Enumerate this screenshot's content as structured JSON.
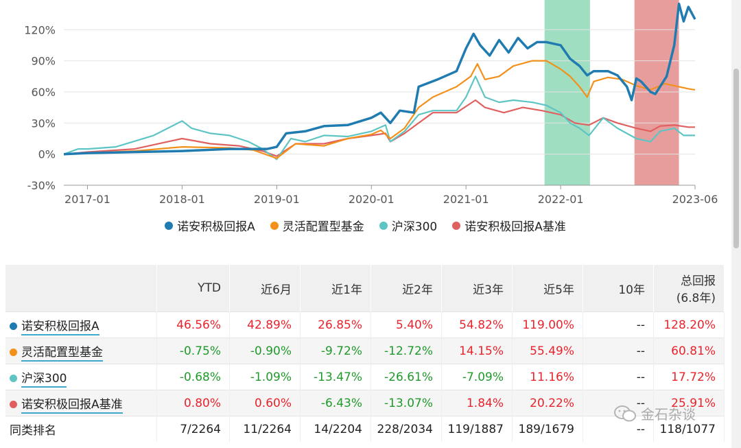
{
  "chart_data": {
    "type": "line",
    "y_ticks": [
      "120%",
      "90%",
      "60%",
      "30%",
      "0%",
      "-30%"
    ],
    "y_tick_values": [
      120,
      90,
      60,
      30,
      0,
      -30
    ],
    "ylim": [
      -30,
      142
    ],
    "x_ticks": [
      "2017-01",
      "2018-01",
      "2019-01",
      "2020-01",
      "2021-01",
      "2022-01",
      "2023-06"
    ],
    "x_tick_values": [
      2017.0,
      2018.0,
      2019.0,
      2020.0,
      2021.0,
      2022.0,
      2023.42
    ],
    "xlim": [
      2016.75,
      2023.42
    ],
    "grid": true,
    "legend_position": "bottom-center",
    "highlight_bands": [
      {
        "start": 2021.83,
        "end": 2022.31,
        "color": "#7fd3ac"
      },
      {
        "start": 2022.78,
        "end": 2023.25,
        "color": "#e07c7c"
      }
    ],
    "series": [
      {
        "name": "诺安积极回报A",
        "color": "#1f7bb0",
        "points": [
          [
            2016.75,
            0
          ],
          [
            2017.0,
            1
          ],
          [
            2017.5,
            2
          ],
          [
            2018.0,
            3
          ],
          [
            2018.5,
            5
          ],
          [
            2018.75,
            5
          ],
          [
            2018.9,
            5
          ],
          [
            2019.0,
            7
          ],
          [
            2019.1,
            20
          ],
          [
            2019.3,
            22
          ],
          [
            2019.5,
            27
          ],
          [
            2019.75,
            28
          ],
          [
            2020.0,
            35
          ],
          [
            2020.1,
            40
          ],
          [
            2020.2,
            30
          ],
          [
            2020.3,
            42
          ],
          [
            2020.45,
            40
          ],
          [
            2020.5,
            65
          ],
          [
            2020.7,
            72
          ],
          [
            2020.9,
            80
          ],
          [
            2021.0,
            102
          ],
          [
            2021.08,
            116
          ],
          [
            2021.15,
            105
          ],
          [
            2021.25,
            95
          ],
          [
            2021.35,
            110
          ],
          [
            2021.45,
            98
          ],
          [
            2021.55,
            112
          ],
          [
            2021.65,
            102
          ],
          [
            2021.75,
            108
          ],
          [
            2021.85,
            108
          ],
          [
            2022.0,
            105
          ],
          [
            2022.1,
            92
          ],
          [
            2022.2,
            85
          ],
          [
            2022.28,
            76
          ],
          [
            2022.35,
            80
          ],
          [
            2022.5,
            80
          ],
          [
            2022.6,
            76
          ],
          [
            2022.7,
            65
          ],
          [
            2022.75,
            52
          ],
          [
            2022.8,
            73
          ],
          [
            2022.85,
            70
          ],
          [
            2022.95,
            60
          ],
          [
            2023.0,
            58
          ],
          [
            2023.05,
            65
          ],
          [
            2023.12,
            75
          ],
          [
            2023.2,
            105
          ],
          [
            2023.25,
            145
          ],
          [
            2023.3,
            128
          ],
          [
            2023.35,
            142
          ],
          [
            2023.42,
            130
          ]
        ]
      },
      {
        "name": "灵活配置型基金",
        "color": "#f39019",
        "points": [
          [
            2016.75,
            0
          ],
          [
            2017.0,
            1
          ],
          [
            2017.5,
            3
          ],
          [
            2018.0,
            7
          ],
          [
            2018.5,
            6
          ],
          [
            2018.75,
            4
          ],
          [
            2019.0,
            -4
          ],
          [
            2019.2,
            10
          ],
          [
            2019.5,
            8
          ],
          [
            2019.75,
            15
          ],
          [
            2020.0,
            19
          ],
          [
            2020.1,
            23
          ],
          [
            2020.2,
            15
          ],
          [
            2020.35,
            25
          ],
          [
            2020.5,
            45
          ],
          [
            2020.65,
            55
          ],
          [
            2020.9,
            65
          ],
          [
            2021.05,
            75
          ],
          [
            2021.12,
            87
          ],
          [
            2021.2,
            72
          ],
          [
            2021.35,
            75
          ],
          [
            2021.5,
            85
          ],
          [
            2021.7,
            90
          ],
          [
            2021.85,
            90
          ],
          [
            2022.0,
            82
          ],
          [
            2022.1,
            75
          ],
          [
            2022.2,
            65
          ],
          [
            2022.28,
            55
          ],
          [
            2022.35,
            70
          ],
          [
            2022.5,
            74
          ],
          [
            2022.65,
            72
          ],
          [
            2022.8,
            66
          ],
          [
            2022.95,
            62
          ],
          [
            2023.1,
            68
          ],
          [
            2023.25,
            65
          ],
          [
            2023.35,
            63
          ],
          [
            2023.42,
            62
          ]
        ]
      },
      {
        "name": "沪深300",
        "color": "#5ec4c4",
        "points": [
          [
            2016.75,
            0
          ],
          [
            2016.9,
            5
          ],
          [
            2017.0,
            5
          ],
          [
            2017.3,
            7
          ],
          [
            2017.7,
            18
          ],
          [
            2018.0,
            32
          ],
          [
            2018.1,
            25
          ],
          [
            2018.3,
            20
          ],
          [
            2018.5,
            18
          ],
          [
            2018.7,
            12
          ],
          [
            2018.85,
            5
          ],
          [
            2019.0,
            -5
          ],
          [
            2019.15,
            15
          ],
          [
            2019.3,
            12
          ],
          [
            2019.5,
            18
          ],
          [
            2019.75,
            17
          ],
          [
            2020.0,
            22
          ],
          [
            2020.15,
            28
          ],
          [
            2020.2,
            12
          ],
          [
            2020.35,
            22
          ],
          [
            2020.5,
            38
          ],
          [
            2020.65,
            42
          ],
          [
            2020.9,
            42
          ],
          [
            2021.0,
            55
          ],
          [
            2021.1,
            75
          ],
          [
            2021.2,
            55
          ],
          [
            2021.35,
            50
          ],
          [
            2021.5,
            52
          ],
          [
            2021.7,
            50
          ],
          [
            2021.85,
            47
          ],
          [
            2022.0,
            40
          ],
          [
            2022.1,
            30
          ],
          [
            2022.2,
            25
          ],
          [
            2022.3,
            18
          ],
          [
            2022.45,
            35
          ],
          [
            2022.6,
            25
          ],
          [
            2022.8,
            15
          ],
          [
            2022.95,
            12
          ],
          [
            2023.05,
            22
          ],
          [
            2023.2,
            25
          ],
          [
            2023.3,
            18
          ],
          [
            2023.42,
            18
          ]
        ]
      },
      {
        "name": "诺安积极回报A基准",
        "color": "#e06060",
        "points": [
          [
            2016.75,
            0
          ],
          [
            2017.0,
            2
          ],
          [
            2017.5,
            5
          ],
          [
            2018.0,
            15
          ],
          [
            2018.3,
            10
          ],
          [
            2018.6,
            8
          ],
          [
            2018.85,
            3
          ],
          [
            2019.0,
            -2
          ],
          [
            2019.2,
            10
          ],
          [
            2019.5,
            10
          ],
          [
            2019.75,
            15
          ],
          [
            2020.0,
            18
          ],
          [
            2020.15,
            20
          ],
          [
            2020.2,
            12
          ],
          [
            2020.35,
            20
          ],
          [
            2020.5,
            30
          ],
          [
            2020.65,
            40
          ],
          [
            2020.9,
            40
          ],
          [
            2021.1,
            52
          ],
          [
            2021.2,
            45
          ],
          [
            2021.4,
            40
          ],
          [
            2021.6,
            45
          ],
          [
            2021.8,
            42
          ],
          [
            2022.0,
            38
          ],
          [
            2022.15,
            30
          ],
          [
            2022.3,
            28
          ],
          [
            2022.45,
            35
          ],
          [
            2022.6,
            30
          ],
          [
            2022.8,
            25
          ],
          [
            2022.95,
            22
          ],
          [
            2023.05,
            27
          ],
          [
            2023.2,
            28
          ],
          [
            2023.35,
            26
          ],
          [
            2023.42,
            26
          ]
        ]
      }
    ]
  },
  "table": {
    "headers": [
      "",
      "YTD",
      "近6月",
      "近1年",
      "近2年",
      "近3年",
      "近5年",
      "10年",
      "总回报",
      "(6.8年)"
    ],
    "rows": [
      {
        "name": "诺安积极回报A",
        "color": "#1f7bb0",
        "values": [
          "46.56%",
          "42.89%",
          "26.85%",
          "5.40%",
          "54.82%",
          "119.00%",
          "--",
          "128.20%"
        ],
        "signs": [
          "pos",
          "pos",
          "pos",
          "pos",
          "pos",
          "pos",
          "neu",
          "pos"
        ]
      },
      {
        "name": "灵活配置型基金",
        "color": "#f39019",
        "values": [
          "-0.75%",
          "-0.90%",
          "-9.72%",
          "-12.72%",
          "14.15%",
          "55.49%",
          "--",
          "60.81%"
        ],
        "signs": [
          "neg",
          "neg",
          "neg",
          "neg",
          "pos",
          "pos",
          "neu",
          "pos"
        ]
      },
      {
        "name": "沪深300",
        "color": "#5ec4c4",
        "values": [
          "-0.68%",
          "-1.09%",
          "-13.47%",
          "-26.61%",
          "-7.09%",
          "11.16%",
          "--",
          "17.72%"
        ],
        "signs": [
          "neg",
          "neg",
          "neg",
          "neg",
          "neg",
          "pos",
          "neu",
          "pos"
        ]
      },
      {
        "name": "诺安积极回报A基准",
        "color": "#e06060",
        "values": [
          "0.80%",
          "0.60%",
          "-6.43%",
          "-13.07%",
          "1.84%",
          "20.22%",
          "--",
          "25.91%"
        ],
        "signs": [
          "pos",
          "pos",
          "neg",
          "neg",
          "pos",
          "pos",
          "neu",
          "pos"
        ]
      }
    ],
    "rank_row": {
      "name": "同类排名",
      "values": [
        "7/2264",
        "11/2264",
        "14/2204",
        "228/2034",
        "119/1887",
        "189/1679",
        "--",
        "118/1077"
      ]
    }
  },
  "watermark": "金石杂谈"
}
